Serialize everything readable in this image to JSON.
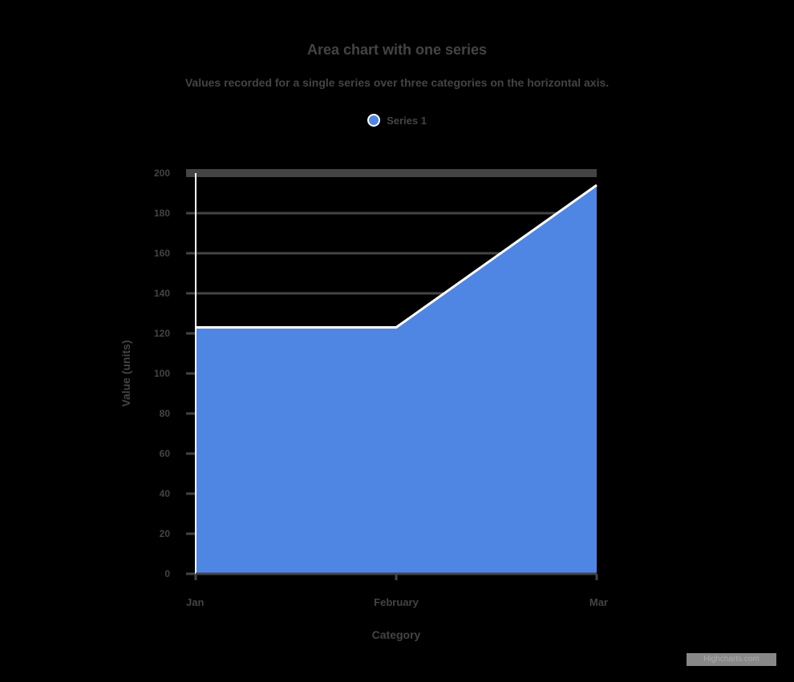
{
  "header": {
    "title": "Area chart with one series",
    "subtitle": "Values recorded for a single series over three categories on the horizontal axis."
  },
  "legend": {
    "items": [
      {
        "label": "Series 1",
        "color": "#4f86e4"
      }
    ]
  },
  "colors": {
    "area": "#4f86e4",
    "line": "#ffffff",
    "grid": "#444444",
    "background": "#000000"
  },
  "credit": "Highcharts.com",
  "chart_data": {
    "type": "area",
    "title": "Area chart with one series",
    "subtitle": "Values recorded for a single series over three categories on the horizontal axis.",
    "categories": [
      "Jan",
      "February",
      "Mar"
    ],
    "series": [
      {
        "name": "Series 1",
        "values": [
          123,
          123,
          194
        ]
      }
    ],
    "xlabel": "Category",
    "ylabel": "Value (units)",
    "yticks": [
      0,
      20,
      40,
      60,
      80,
      100,
      120,
      140,
      160,
      180,
      200
    ],
    "ylim": [
      0,
      200
    ],
    "grid": true,
    "legend_position": "top"
  }
}
